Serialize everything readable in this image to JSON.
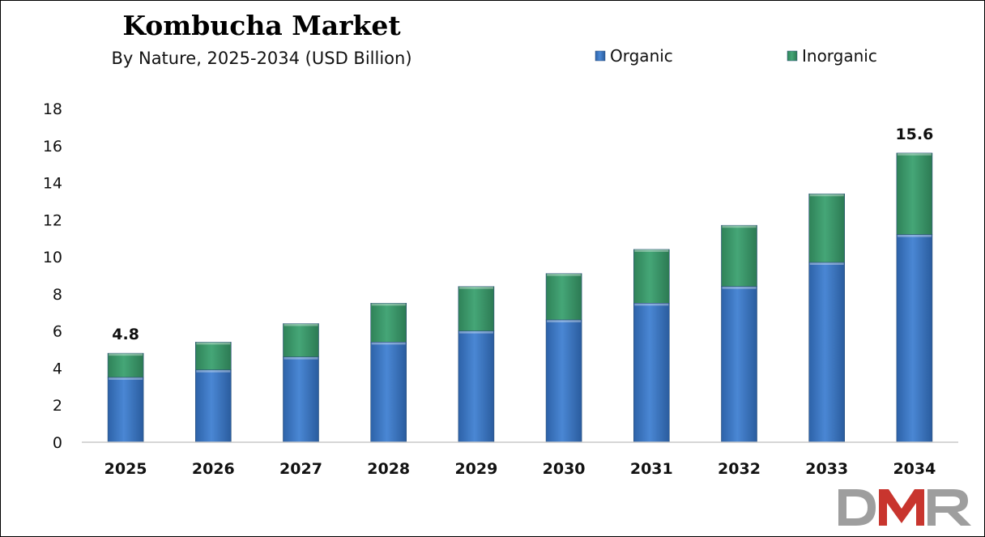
{
  "chart_data": {
    "type": "bar",
    "stacked": true,
    "title": "Kombucha Market",
    "subtitle": "By Nature, 2025-2034 (USD Billion)",
    "categories": [
      "2025",
      "2026",
      "2027",
      "2028",
      "2029",
      "2030",
      "2031",
      "2032",
      "2033",
      "2034"
    ],
    "series": [
      {
        "name": "Organic",
        "color": "#3a75c4",
        "values": [
          3.5,
          3.9,
          4.6,
          5.4,
          6.0,
          6.6,
          7.5,
          8.4,
          9.7,
          11.2
        ]
      },
      {
        "name": "Inorganic",
        "color": "#3c9a6c",
        "values": [
          1.3,
          1.5,
          1.8,
          2.1,
          2.4,
          2.5,
          2.9,
          3.3,
          3.7,
          4.4
        ]
      }
    ],
    "data_labels": [
      {
        "category": "2025",
        "text": "4.8"
      },
      {
        "category": "2034",
        "text": "15.6"
      }
    ],
    "ylim": [
      0,
      18
    ],
    "yticks": [
      "0",
      "2",
      "4",
      "6",
      "8",
      "10",
      "12",
      "14",
      "16",
      "18"
    ],
    "grid": false,
    "legend_position": "top-right"
  },
  "logo": {
    "text": "DMR",
    "colors": [
      "#9e9e9e",
      "#c8352e",
      "#9e9e9e"
    ]
  }
}
